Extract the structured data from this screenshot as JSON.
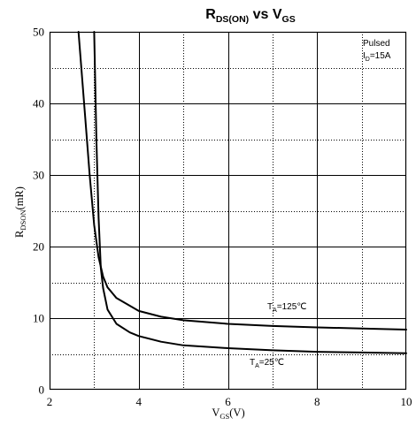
{
  "chart_data": {
    "type": "line",
    "title": {
      "main": "R",
      "main_sub": "DS(ON)",
      "mid": " vs V",
      "mid_sub": "GS"
    },
    "xlabel": {
      "main": "V",
      "sub": "GS",
      "unit": "(V)"
    },
    "ylabel": {
      "main": "R",
      "sub": "DSON",
      "unit": "(mR)"
    },
    "xlim": [
      2,
      10
    ],
    "ylim": [
      0,
      50
    ],
    "xticks": [
      2,
      4,
      6,
      8,
      10
    ],
    "yticks": [
      0,
      10,
      20,
      30,
      40,
      50
    ],
    "grid": true,
    "annotation": {
      "line1": "Pulsed",
      "line2_main": "I",
      "line2_sub": "D",
      "line2_rest": "=15A"
    },
    "series": [
      {
        "name": "T_A=125°C",
        "label": {
          "main": "T",
          "sub": "A",
          "rest": "=125℃"
        },
        "x": [
          2.65,
          2.8,
          2.9,
          3.0,
          3.1,
          3.2,
          3.3,
          3.5,
          4.0,
          4.5,
          5.0,
          6.0,
          7.0,
          8.0,
          9.0,
          10.0
        ],
        "y": [
          50,
          38,
          30,
          23,
          18.5,
          15.8,
          14.3,
          12.8,
          11.0,
          10.2,
          9.7,
          9.2,
          8.9,
          8.7,
          8.55,
          8.4
        ]
      },
      {
        "name": "T_A=25°C",
        "label": {
          "main": "T",
          "sub": "A",
          "rest": "=25℃"
        },
        "x": [
          3.0,
          3.05,
          3.1,
          3.15,
          3.2,
          3.3,
          3.5,
          3.8,
          4.0,
          4.5,
          5.0,
          6.0,
          7.0,
          8.0,
          9.0,
          10.0
        ],
        "y": [
          50,
          35,
          24,
          17,
          14.2,
          11.2,
          9.2,
          8.0,
          7.5,
          6.7,
          6.2,
          5.8,
          5.5,
          5.3,
          5.2,
          5.1
        ]
      }
    ]
  }
}
